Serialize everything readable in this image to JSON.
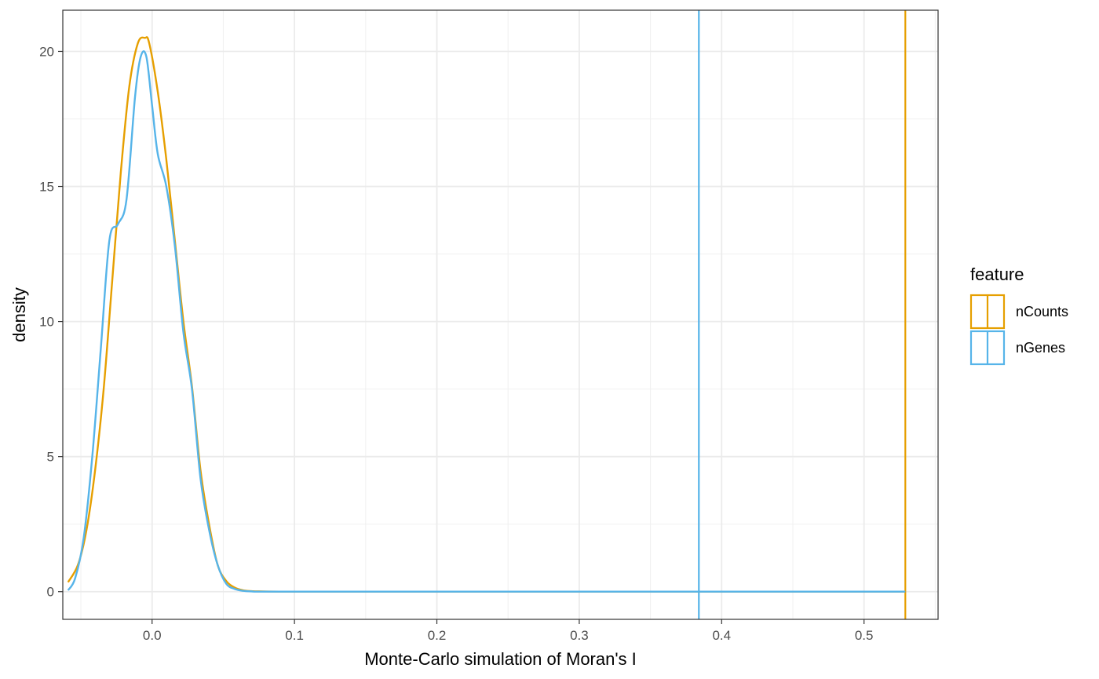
{
  "chart_data": {
    "type": "line",
    "title": "",
    "xlabel": "Monte-Carlo simulation of Moran's I",
    "ylabel": "density",
    "xlim": [
      -0.0627,
      0.552
    ],
    "ylim": [
      -1.025,
      21.525
    ],
    "x_ticks": [
      0.0,
      0.1,
      0.2,
      0.3,
      0.4,
      0.5
    ],
    "x_tick_labels": [
      "0.0",
      "0.1",
      "0.2",
      "0.3",
      "0.4",
      "0.5"
    ],
    "y_ticks": [
      0,
      5,
      10,
      15,
      20
    ],
    "y_tick_labels": [
      "0",
      "5",
      "10",
      "15",
      "20"
    ],
    "grid": true,
    "legend": {
      "title": "feature",
      "position": "right"
    },
    "series": [
      {
        "name": "nCounts",
        "color": "#E69F00",
        "observed": 0.529,
        "x": [
          -0.059,
          -0.052,
          -0.046,
          -0.04,
          -0.034,
          -0.028,
          -0.022,
          -0.016,
          -0.01,
          -0.005,
          -0.002,
          0.004,
          0.01,
          0.016,
          0.022,
          0.028,
          0.034,
          0.04,
          0.046,
          0.052,
          0.058,
          0.064,
          0.07,
          0.075,
          0.1,
          0.2,
          0.3,
          0.4,
          0.529
        ],
        "y": [
          0.35,
          1.0,
          2.3,
          4.5,
          7.5,
          11.5,
          15.5,
          18.7,
          20.3,
          20.5,
          20.3,
          18.5,
          16.0,
          13.0,
          10.0,
          7.6,
          4.5,
          2.5,
          1.0,
          0.4,
          0.15,
          0.05,
          0.02,
          0.01,
          0.0,
          0.0,
          0.0,
          0.0,
          0.0
        ]
      },
      {
        "name": "nGenes",
        "color": "#56B4E9",
        "observed": 0.384,
        "x": [
          -0.059,
          -0.054,
          -0.048,
          -0.042,
          -0.036,
          -0.03,
          -0.024,
          -0.018,
          -0.012,
          -0.008,
          -0.004,
          0.0,
          0.004,
          0.01,
          0.016,
          0.022,
          0.028,
          0.034,
          0.04,
          0.046,
          0.052,
          0.058,
          0.064,
          0.07,
          0.075,
          0.1,
          0.2,
          0.3,
          0.4,
          0.529
        ],
        "y": [
          0.05,
          0.5,
          2.0,
          5.0,
          9.0,
          13.0,
          13.6,
          14.5,
          18.3,
          19.8,
          19.8,
          18.0,
          16.2,
          15.0,
          12.8,
          9.6,
          7.5,
          4.2,
          2.3,
          1.0,
          0.3,
          0.1,
          0.03,
          0.01,
          0.0,
          0.0,
          0.0,
          0.0,
          0.0,
          0.0
        ]
      }
    ]
  }
}
